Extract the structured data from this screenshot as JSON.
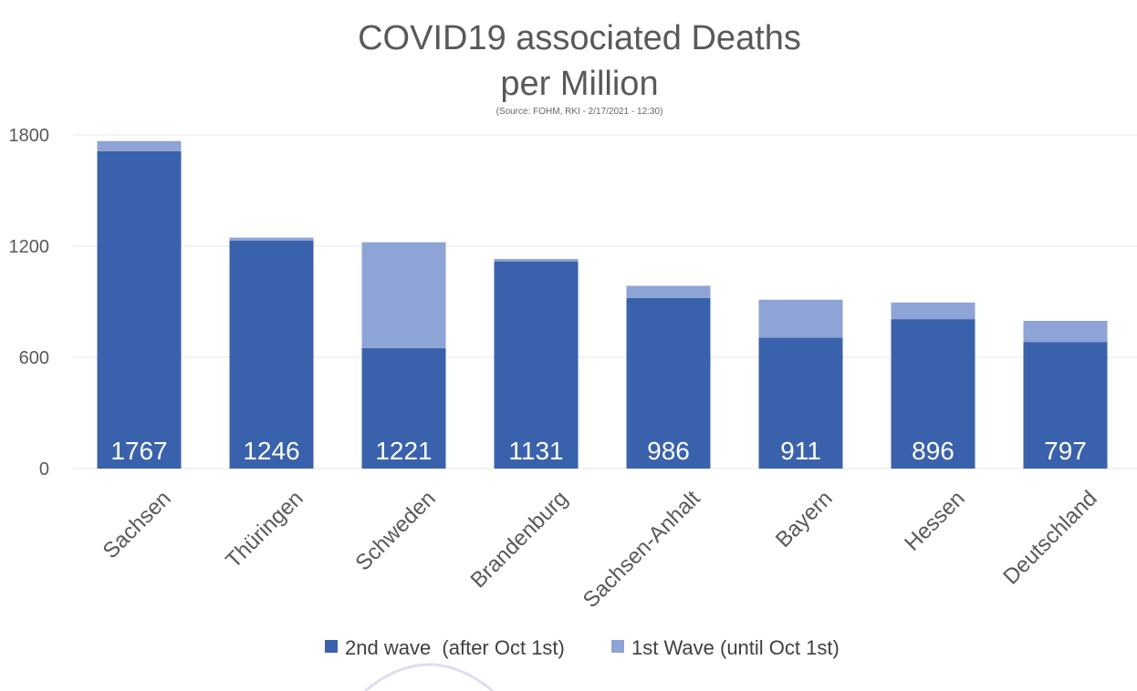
{
  "chart_data": {
    "type": "bar",
    "stacked": true,
    "title_lines": [
      "COVID19 associated Deaths",
      "per Million"
    ],
    "subtitle": "(Source: FOHM, RKI - 2/17/2021 - 12:30)",
    "xlabel": "",
    "ylabel": "",
    "ylim": [
      0,
      1800
    ],
    "yticks": [
      0,
      600,
      1200,
      1800
    ],
    "grid": true,
    "legend_position": "bottom",
    "categories": [
      "Sachsen",
      "Thüringen",
      "Schweden",
      "Brandenburg",
      "Sachsen-Anhalt",
      "Bayern",
      "Hessen",
      "Deutschland"
    ],
    "totals": [
      "1767",
      "1246",
      "1221",
      "1131",
      "986",
      "911",
      "896",
      "797"
    ],
    "series": [
      {
        "name": "2nd wave  (after Oct 1st)",
        "color": "#3a62ac",
        "values": [
          1712,
          1230,
          650,
          1118,
          920,
          706,
          806,
          683
        ]
      },
      {
        "name": "1st Wave (until Oct 1st)",
        "color": "#8ea3d6",
        "values": [
          55,
          16,
          571,
          13,
          66,
          205,
          90,
          114
        ]
      }
    ]
  }
}
